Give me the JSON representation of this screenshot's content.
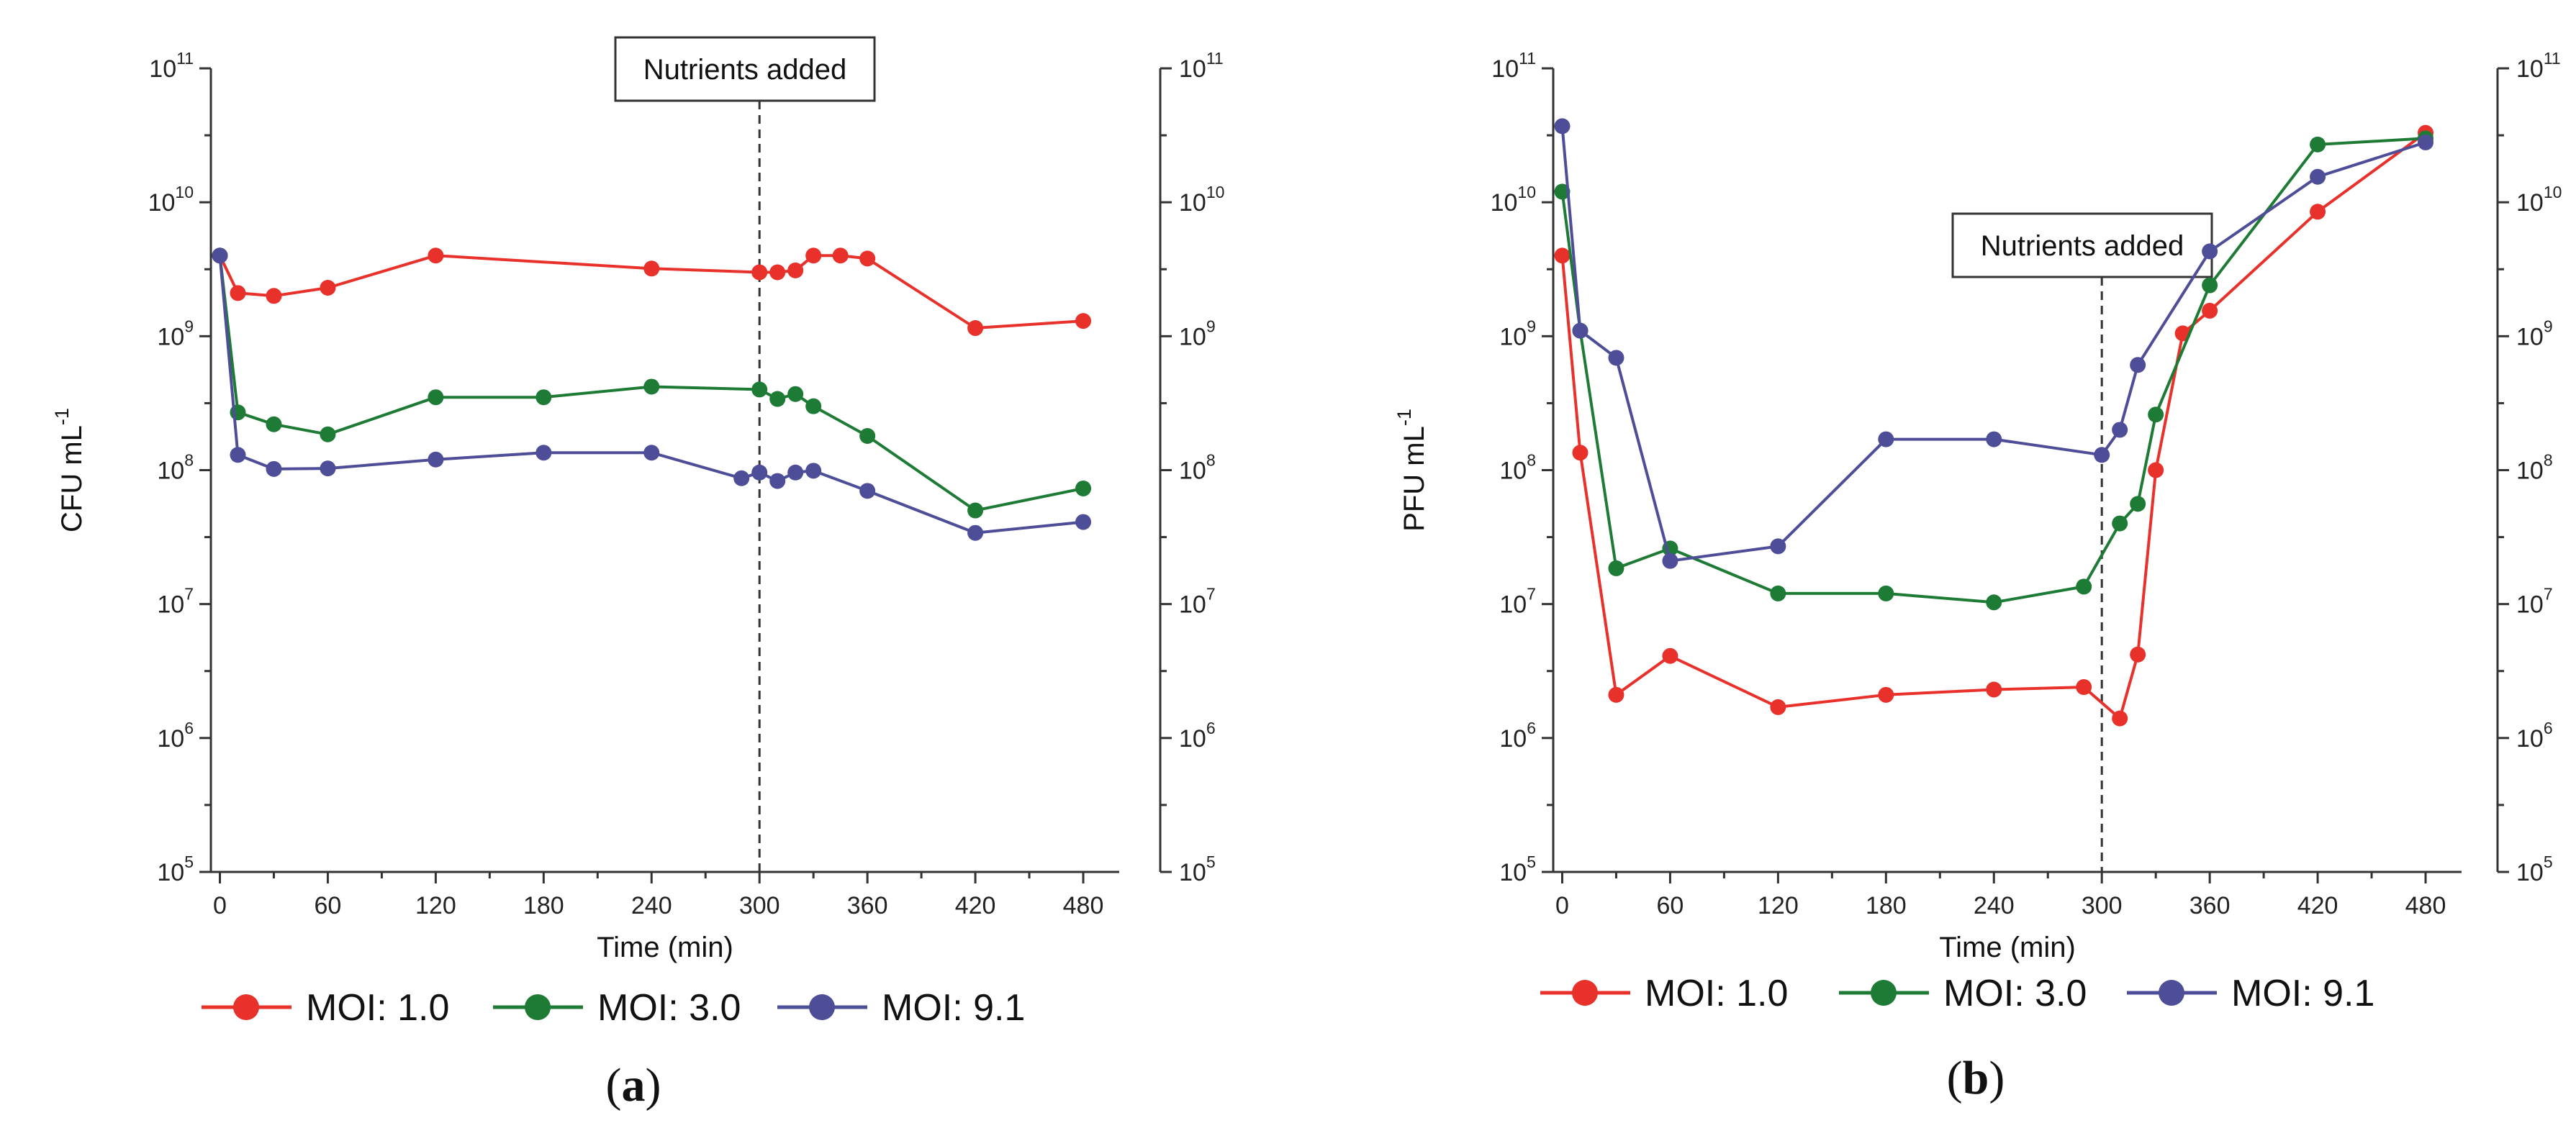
{
  "chart_data": [
    {
      "panel": "(a)",
      "panel_letter": "a",
      "type": "line",
      "y_scale": "log",
      "xlabel": "Time (min)",
      "ylabel": "CFU mL",
      "ylabel_sup": "-1",
      "xlim": [
        -5,
        500
      ],
      "ylim": [
        100000,
        100000000000
      ],
      "x_ticks": [
        0,
        60,
        120,
        180,
        240,
        300,
        360,
        420,
        480
      ],
      "y_tick_exponents": [
        5,
        6,
        7,
        8,
        9,
        10,
        11
      ],
      "vline": {
        "x": 300,
        "label": "Nutrients added"
      },
      "series": [
        {
          "name": "MOI: 1.0",
          "color": "#e8312b",
          "x": [
            0,
            10,
            30,
            60,
            120,
            240,
            300,
            310,
            320,
            330,
            345,
            360,
            420,
            480
          ],
          "y": [
            4000000000.0,
            2100000000.0,
            2000000000.0,
            2300000000.0,
            4000000000.0,
            3200000000.0,
            3000000000.0,
            3000000000.0,
            3100000000.0,
            4000000000.0,
            4000000000.0,
            3800000000.0,
            1150000000.0,
            1300000000.0
          ]
        },
        {
          "name": "MOI: 3.0",
          "color": "#1e7b35",
          "x": [
            0,
            10,
            30,
            60,
            120,
            180,
            240,
            300,
            310,
            320,
            330,
            360,
            420,
            480
          ],
          "y": [
            4000000000.0,
            270000000.0,
            220000000.0,
            185000000.0,
            350000000.0,
            350000000.0,
            420000000.0,
            400000000.0,
            340000000.0,
            370000000.0,
            300000000.0,
            180000000.0,
            50000000.0,
            73000000.0
          ]
        },
        {
          "name": "MOI: 9.1",
          "color": "#4e4d98",
          "x": [
            0,
            10,
            30,
            60,
            120,
            180,
            240,
            290,
            300,
            310,
            320,
            330,
            360,
            420,
            480
          ],
          "y": [
            4000000000.0,
            130000000.0,
            102000000.0,
            103000000.0,
            120000000.0,
            135000000.0,
            135000000.0,
            87000000.0,
            96000000.0,
            83000000.0,
            96000000.0,
            99000000.0,
            70000000.0,
            34000000.0,
            41000000.0
          ]
        }
      ]
    },
    {
      "panel": "(b)",
      "panel_letter": "b",
      "type": "line",
      "y_scale": "log",
      "xlabel": "Time (min)",
      "ylabel": "PFU mL",
      "ylabel_sup": "-1",
      "xlim": [
        -5,
        500
      ],
      "ylim": [
        100000,
        100000000000
      ],
      "x_ticks": [
        0,
        60,
        120,
        180,
        240,
        300,
        360,
        420,
        480
      ],
      "y_tick_exponents": [
        5,
        6,
        7,
        8,
        9,
        10,
        11
      ],
      "vline": {
        "x": 300,
        "label": "Nutrients added"
      },
      "series": [
        {
          "name": "MOI: 1.0",
          "color": "#e8312b",
          "x": [
            0,
            10,
            30,
            60,
            120,
            180,
            240,
            290,
            310,
            320,
            330,
            345,
            360,
            420,
            480
          ],
          "y": [
            4000000000.0,
            135000000.0,
            2100000.0,
            4100000.0,
            1700000.0,
            2100000.0,
            2300000.0,
            2400000.0,
            1400000.0,
            4200000.0,
            100000000.0,
            1050000000.0,
            1550000000.0,
            8500000000.0,
            33000000000.0
          ]
        },
        {
          "name": "MOI: 3.0",
          "color": "#1e7b35",
          "x": [
            0,
            10,
            30,
            60,
            120,
            180,
            240,
            290,
            310,
            320,
            330,
            360,
            420,
            480
          ],
          "y": [
            12000000000.0,
            1100000000.0,
            18500000.0,
            26000000.0,
            12000000.0,
            12000000.0,
            10300000.0,
            13500000.0,
            40000000.0,
            56000000.0,
            260000000.0,
            2400000000.0,
            27000000000.0,
            30000000000.0
          ]
        },
        {
          "name": "MOI: 9.1",
          "color": "#4e4d98",
          "x": [
            0,
            10,
            30,
            60,
            120,
            180,
            240,
            300,
            310,
            320,
            360,
            420,
            480
          ],
          "y": [
            37000000000.0,
            1100000000.0,
            690000000.0,
            21000000.0,
            27000000.0,
            170000000.0,
            170000000.0,
            130000000.0,
            200000000.0,
            610000000.0,
            4300000000.0,
            15500000000.0,
            28000000000.0
          ]
        }
      ]
    }
  ]
}
